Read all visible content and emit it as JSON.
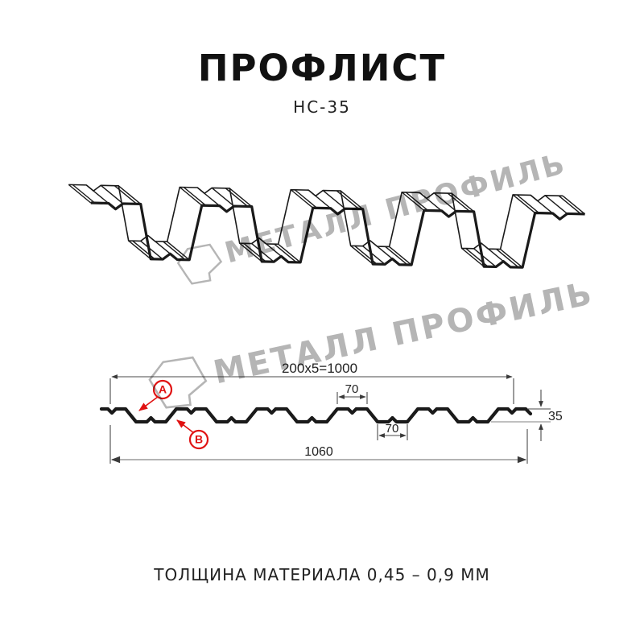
{
  "header": {
    "title": "ПРОФЛИСТ",
    "subtitle": "НС-35"
  },
  "watermark": {
    "text": "МЕТАЛЛ ПРОФИЛЬ",
    "color": "#b5b5b5"
  },
  "profile_3d": {
    "name": "corrugated-sheet-3d-view"
  },
  "cross_section": {
    "dim_useful_width": "200x5=1000",
    "dim_crest_top": "70",
    "dim_valley_bottom": "70",
    "dim_height": "35",
    "dim_total_width": "1060",
    "marker_a": "A",
    "marker_b": "B"
  },
  "colors": {
    "line": "#1a1a1a",
    "dim": "#4a4a4a",
    "dim_light": "#9a9a9a",
    "accent_red": "#e01212",
    "watermark": "#b5b5b5"
  },
  "footer": {
    "text": "ТОЛЩИНА МАТЕРИАЛА 0,45 – 0,9 ММ"
  }
}
